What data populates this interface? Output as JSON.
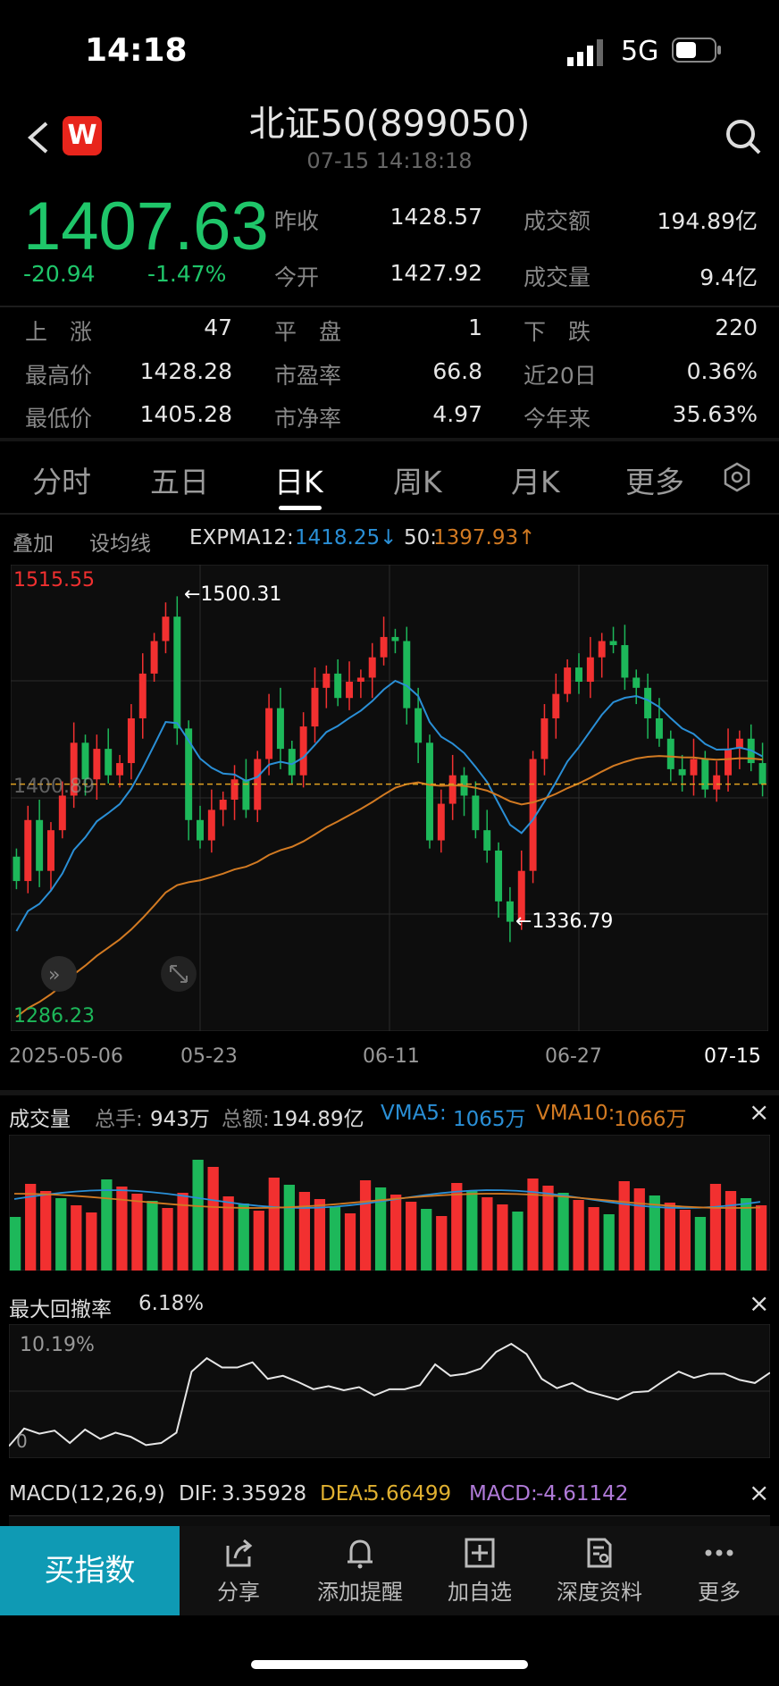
{
  "status": {
    "time": "14:18",
    "network": "5G"
  },
  "nav": {
    "title": "北证50(899050)",
    "subtitle": "07-15 14:18:18",
    "brand": "W"
  },
  "quote": {
    "price": "1407.63",
    "change": "-20.94",
    "change_pct": "-1.47%",
    "prev_close_label": "昨收",
    "prev_close": "1428.57",
    "turnover_label": "成交额",
    "turnover": "194.89亿",
    "open_label": "今开",
    "open": "1427.92",
    "volume_label": "成交量",
    "volume": "9.4亿"
  },
  "stats": {
    "up_label": "上　涨",
    "up": "47",
    "flat_label": "平　盘",
    "flat": "1",
    "down_label": "下　跌",
    "down": "220",
    "high_label": "最高价",
    "high": "1428.28",
    "pe_label": "市盈率",
    "pe": "66.8",
    "d20_label": "近20日",
    "d20": "0.36%",
    "low_label": "最低价",
    "low": "1405.28",
    "pb_label": "市净率",
    "pb": "4.97",
    "ytd_label": "今年来",
    "ytd": "35.63%"
  },
  "tabs": [
    "分时",
    "五日",
    "日K",
    "周K",
    "月K",
    "更多"
  ],
  "active_tab": "日K",
  "indicator_row": {
    "overlay": "叠加",
    "ma_setting": "设均线",
    "ema12_label": "EXPMA12:",
    "ema12": "1418.25↓",
    "ema50_label": "50:",
    "ema50": "1397.93↑"
  },
  "kline": {
    "top_label": "1515.55",
    "bottom_label": "1286.23",
    "mid_label": "1400.89",
    "high_mark": "←1500.31",
    "low_mark": "←1336.79",
    "dates": [
      "2025-05-06",
      "05-23",
      "06-11",
      "06-27",
      "07-15"
    ]
  },
  "volume_panel": {
    "title": "成交量",
    "total_hands_label": "总手:",
    "total_hands": "943万",
    "total_amount_label": "总额:",
    "total_amount": "194.89亿",
    "vma5_label": "VMA5:",
    "vma5": "1065万",
    "vma10_label": "VMA10:",
    "vma10": "1066万",
    "close": "×"
  },
  "drawdown_panel": {
    "title": "最大回撤率",
    "value": "6.18%",
    "top_label": "10.19%",
    "bottom_label": "0",
    "close": "×"
  },
  "macd_panel": {
    "title": "MACD(12,26,9)",
    "dif_label": "DIF:",
    "dif": "3.35928",
    "dea_label": "DEA:",
    "dea": "5.66499",
    "macd_label": "MACD:",
    "macd": "-4.61142",
    "close": "×"
  },
  "bottom": {
    "buy": "买指数",
    "share": "分享",
    "alert": "添加提醒",
    "watch": "加自选",
    "deep": "深度资料",
    "more": "更多"
  },
  "colors": {
    "up": "#f23030",
    "down": "#1db85a",
    "ema12": "#2a8fd6",
    "ema50": "#d27a22",
    "accent": "#0f9ab4"
  },
  "chart_data": [
    {
      "type": "candlestick",
      "title": "日K",
      "x": [
        "2025-05-06",
        "05-23",
        "06-11",
        "06-27",
        "07-15"
      ],
      "y_range": [
        1286.23,
        1515.55
      ],
      "annotations": {
        "max": 1500.31,
        "min": 1336.79,
        "last": 1407.63
      },
      "series": [
        {
          "name": "EXPMA12",
          "latest": 1418.25
        },
        {
          "name": "50",
          "latest": 1397.93
        }
      ]
    },
    {
      "type": "bar",
      "title": "成交量",
      "series": [
        {
          "name": "VMA5",
          "latest": "1065万"
        },
        {
          "name": "VMA10",
          "latest": "1066万"
        }
      ]
    },
    {
      "type": "line",
      "title": "最大回撤率",
      "y_range": [
        0,
        10.19
      ],
      "latest": 6.18
    },
    {
      "type": "bar",
      "title": "MACD(12,26,9)",
      "series": [
        {
          "name": "DIF",
          "latest": 3.35928
        },
        {
          "name": "DEA",
          "latest": 5.66499
        },
        {
          "name": "MACD",
          "latest": -4.61142
        }
      ]
    }
  ]
}
